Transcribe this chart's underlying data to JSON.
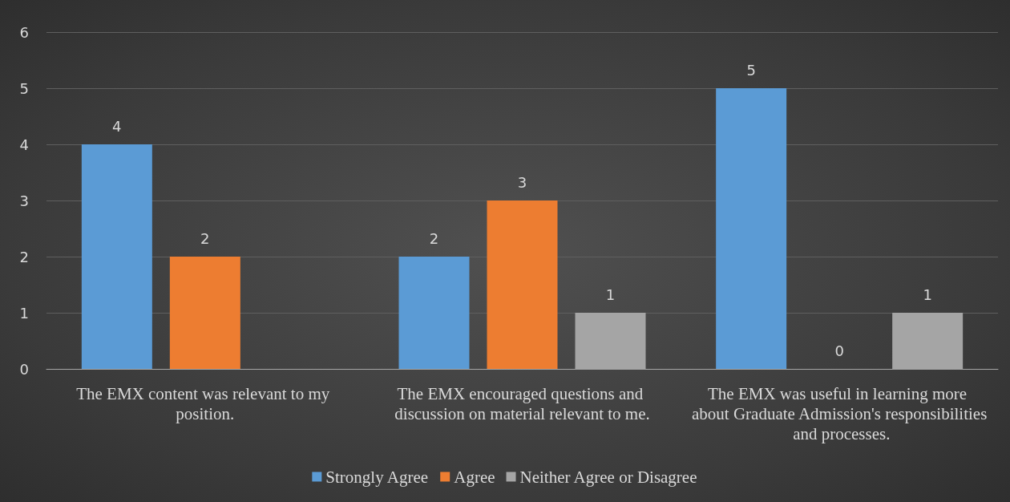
{
  "chart_data": {
    "type": "bar",
    "categories": [
      "The EMX content was relevant to my position.",
      "The EMX encouraged questions and discussion on material relevant to me.",
      "The EMX was useful in learning more about Graduate Admission's responsibilities and processes."
    ],
    "series": [
      {
        "name": "Strongly Agree",
        "color": "#5b9bd5",
        "values": [
          4,
          2,
          5
        ]
      },
      {
        "name": "Agree",
        "color": "#ed7d31",
        "values": [
          2,
          3,
          0
        ]
      },
      {
        "name": "Neither Agree or Disagree",
        "color": "#a5a5a5",
        "values": [
          null,
          1,
          1
        ]
      }
    ],
    "ylim": [
      0,
      6
    ],
    "yticks": [
      0,
      1,
      2,
      3,
      4,
      5,
      6
    ],
    "grid": "y",
    "legend": "bottom",
    "data_labels": true
  }
}
